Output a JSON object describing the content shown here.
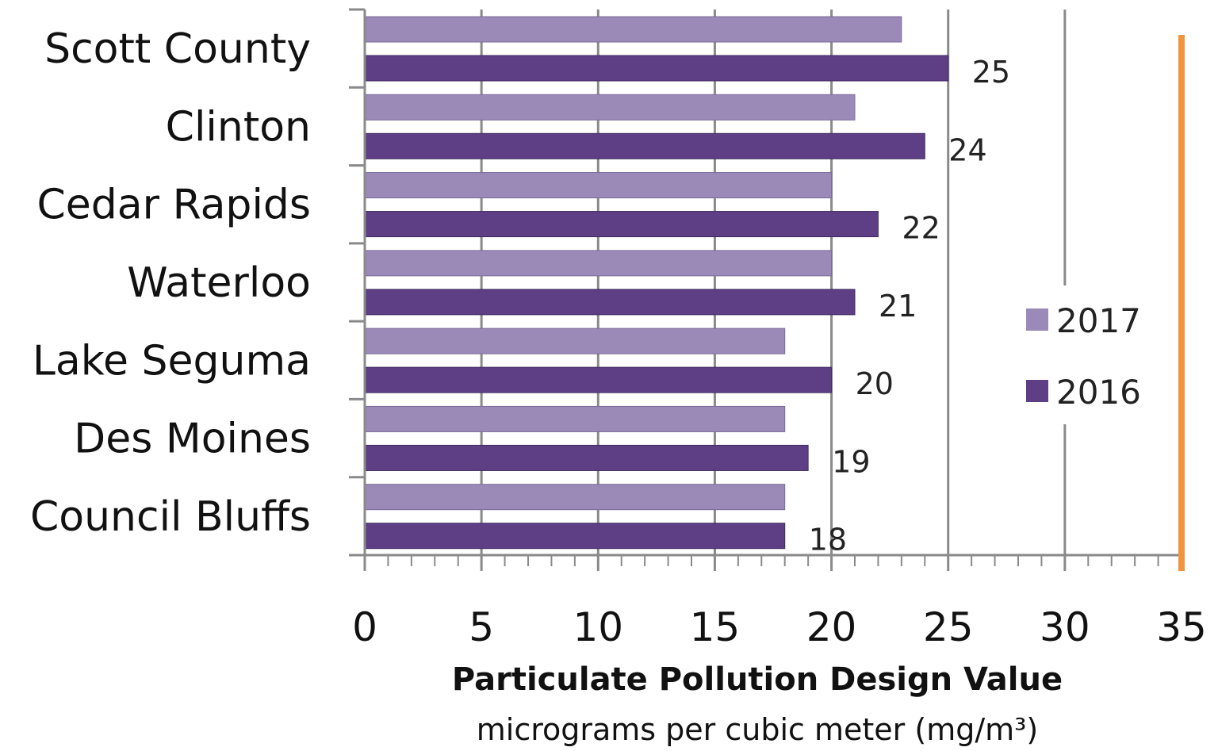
{
  "chart_data": {
    "type": "bar",
    "orientation": "horizontal",
    "categories": [
      "Scott County",
      "Clinton",
      "Cedar Rapids",
      "Waterloo",
      "Lake Seguma",
      "Des Moines",
      "Council Bluffs"
    ],
    "series": [
      {
        "name": "2017",
        "values": [
          23,
          21,
          20,
          20,
          18,
          18,
          18
        ],
        "color": "#9b89b8"
      },
      {
        "name": "2016",
        "values": [
          25,
          24,
          22,
          21,
          20,
          19,
          18
        ],
        "color": "#5e3f86"
      }
    ],
    "data_labels_series": "2016",
    "data_labels": [
      "25",
      "24",
      "22",
      "21",
      "20",
      "19",
      "18"
    ],
    "xlim": [
      0,
      35
    ],
    "x_ticks": [
      "0",
      "5",
      "10",
      "15",
      "20",
      "25",
      "30",
      "35"
    ],
    "xlabel": "Particulate Pollution Design Value",
    "xlabel_sub": "micrograms per cubic meter (mg/m³)",
    "ylabel": "",
    "title": "",
    "grid": true,
    "legend": {
      "placement": "right",
      "entries": [
        "2017",
        "2016"
      ]
    },
    "reference_line": {
      "x": 35,
      "color": "#f0953f"
    }
  }
}
